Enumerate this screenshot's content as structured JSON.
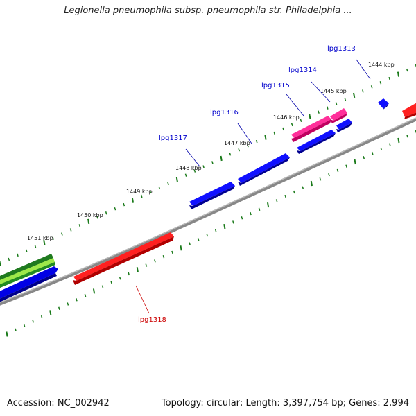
{
  "title": "Legionella pneumophila subsp. pneumophila str. Philadelphia ...",
  "footer": {
    "accession": "Accession: NC_002942",
    "summary": "Topology: circular; Length: 3,397,754 bp; Genes: 2,994"
  },
  "scale_labels": [
    "1444 kbp",
    "1445 kbp",
    "1446 kbp",
    "1447 kbp",
    "1448 kbp",
    "1449 kbp",
    "1450 kbp",
    "1451 kbp"
  ],
  "genes": [
    {
      "label": "lpg1313",
      "color": "#0000cc"
    },
    {
      "label": "lpg1314",
      "color": "#0000cc"
    },
    {
      "label": "lpg1315",
      "color": "#0000cc"
    },
    {
      "label": "lpg1316",
      "color": "#0000cc"
    },
    {
      "label": "lpg1317",
      "color": "#0000cc"
    },
    {
      "label": "lpg1318",
      "color": "#cc0000"
    }
  ],
  "colors": {
    "forward_gene": "#0000ee",
    "reverse_gene": "#ee0000",
    "highlight_gene": "#ff1f8c",
    "rna_gene": "#228b22",
    "backbone": "#888888",
    "ticks": "#1a7a1a"
  }
}
